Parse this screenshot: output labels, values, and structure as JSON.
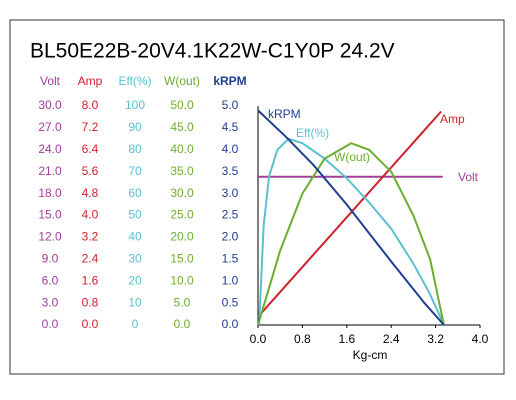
{
  "chart_data": {
    "type": "line",
    "title": "BL50E22B-20V4.1K22W-C1Y0P   24.2V",
    "x_label": "Kg-cm",
    "xlim": [
      0,
      4
    ],
    "xticks": [
      {
        "value": 0,
        "label": "0.0"
      },
      {
        "value": 0.8,
        "label": "0.8"
      },
      {
        "value": 1.6,
        "label": "1.6"
      },
      {
        "value": 2.4,
        "label": "2.4"
      },
      {
        "value": 3.2,
        "label": "3.2"
      },
      {
        "value": 4,
        "label": "4.0"
      }
    ],
    "axes": [
      {
        "name": "Volt",
        "color": "#a0409a",
        "lim": [
          0,
          30
        ],
        "ticks": [
          {
            "value": 30,
            "label": "30.0"
          },
          {
            "value": 27,
            "label": "27.0"
          },
          {
            "value": 24,
            "label": "24.0"
          },
          {
            "value": 21,
            "label": "21.0"
          },
          {
            "value": 18,
            "label": "18.0"
          },
          {
            "value": 15,
            "label": "15.0"
          },
          {
            "value": 12,
            "label": "12.0"
          },
          {
            "value": 9,
            "label": "9.0"
          },
          {
            "value": 6,
            "label": "6.0"
          },
          {
            "value": 3,
            "label": "3.0"
          },
          {
            "value": 0,
            "label": "0.0"
          }
        ],
        "x": [
          0,
          3.33
        ],
        "values": [
          20.3,
          20.3
        ]
      },
      {
        "name": "Amp",
        "color": "#d0202a",
        "lim": [
          0,
          8
        ],
        "ticks": [
          {
            "value": 8,
            "label": "8.0"
          },
          {
            "value": 7.2,
            "label": "7.2"
          },
          {
            "value": 6.4,
            "label": "6.4"
          },
          {
            "value": 5.6,
            "label": "5.6"
          },
          {
            "value": 4.8,
            "label": "4.8"
          },
          {
            "value": 4,
            "label": "4.0"
          },
          {
            "value": 3.2,
            "label": "3.2"
          },
          {
            "value": 2.4,
            "label": "2.4"
          },
          {
            "value": 1.6,
            "label": "1.6"
          },
          {
            "value": 0.8,
            "label": "0.8"
          },
          {
            "value": 0,
            "label": "0.0"
          }
        ],
        "x": [
          0,
          3.3
        ],
        "values": [
          0.3,
          7.8
        ]
      },
      {
        "name": "Eff(%)",
        "color": "#5bc0d0",
        "lim": [
          0,
          100
        ],
        "ticks": [
          100,
          90,
          80,
          70,
          60,
          50,
          40,
          30,
          20,
          10,
          0
        ],
        "x": [
          0.02,
          0.1,
          0.2,
          0.35,
          0.55,
          0.8,
          1.2,
          1.6,
          2.0,
          2.4,
          2.8,
          3.1,
          3.35
        ],
        "values": [
          0,
          45,
          68,
          80,
          85,
          83,
          76,
          67,
          56,
          44,
          28,
          14,
          0
        ]
      },
      {
        "name": "W(out)",
        "color": "#6aaf2e",
        "lim": [
          0,
          50
        ],
        "ticks": [
          {
            "value": 50,
            "label": "50.0"
          },
          {
            "value": 45,
            "label": "45.0"
          },
          {
            "value": 40,
            "label": "40.0"
          },
          {
            "value": 35,
            "label": "35.0"
          },
          {
            "value": 30,
            "label": "30.0"
          },
          {
            "value": 25,
            "label": "25.0"
          },
          {
            "value": 20,
            "label": "20.0"
          },
          {
            "value": 15,
            "label": "15.0"
          },
          {
            "value": 10,
            "label": "10.0"
          },
          {
            "value": 5,
            "label": "5.0"
          },
          {
            "value": 0,
            "label": "0.0"
          }
        ],
        "x": [
          0,
          0.4,
          0.8,
          1.2,
          1.68,
          2.0,
          2.4,
          2.8,
          3.1,
          3.35
        ],
        "values": [
          0,
          17,
          30,
          38,
          41.5,
          40,
          35,
          25,
          15,
          0
        ]
      },
      {
        "name": "kRPM",
        "color": "#1f3f8f",
        "lim": [
          0,
          5
        ],
        "ticks": [
          {
            "value": 5,
            "label": "5.0"
          },
          {
            "value": 4.5,
            "label": "4.5"
          },
          {
            "value": 4,
            "label": "4.0"
          },
          {
            "value": 3.5,
            "label": "3.5"
          },
          {
            "value": 3,
            "label": "3.0"
          },
          {
            "value": 2.5,
            "label": "2.5"
          },
          {
            "value": 2,
            "label": "2.0"
          },
          {
            "value": 1.5,
            "label": "1.5"
          },
          {
            "value": 1,
            "label": "1.0"
          },
          {
            "value": 0.5,
            "label": "0.5"
          },
          {
            "value": 0,
            "label": "0.0"
          }
        ],
        "x": [
          0,
          0.5,
          1.0,
          1.6,
          2.4,
          3.0,
          3.35
        ],
        "values": [
          4.9,
          4.3,
          3.65,
          2.75,
          1.45,
          0.5,
          0
        ]
      }
    ]
  }
}
